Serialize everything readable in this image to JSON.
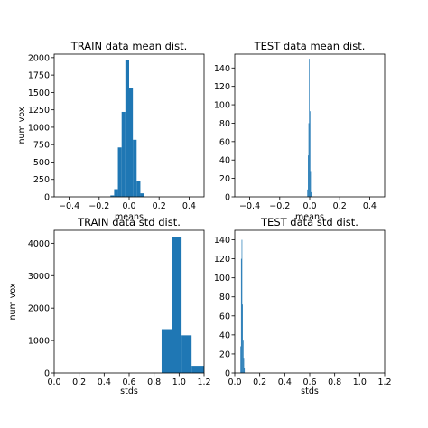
{
  "colors": {
    "bar": "#1f77b4",
    "axes": "#000000"
  },
  "chart_data": [
    {
      "type": "bar",
      "title": "TRAIN data mean dist.",
      "xlabel": "means",
      "ylabel": "num vox",
      "xlim": [
        -0.5,
        0.5
      ],
      "ylim": [
        0,
        2050
      ],
      "xticks": [
        -0.4,
        -0.2,
        0.0,
        0.2,
        0.4
      ],
      "xtick_labels": [
        "−0.4",
        "−0.2",
        "0.0",
        "0.2",
        "0.4"
      ],
      "yticks": [
        0,
        250,
        500,
        750,
        1000,
        1250,
        1500,
        1750,
        2000
      ],
      "ytick_labels": [
        "0",
        "250",
        "500",
        "750",
        "1000",
        "1250",
        "1500",
        "1750",
        "2000"
      ],
      "bins": [
        {
          "x0": -0.125,
          "x1": -0.1,
          "value": 20
        },
        {
          "x0": -0.1,
          "x1": -0.075,
          "value": 110
        },
        {
          "x0": -0.075,
          "x1": -0.05,
          "value": 710
        },
        {
          "x0": -0.05,
          "x1": -0.025,
          "value": 1220
        },
        {
          "x0": -0.025,
          "x1": 0.0,
          "value": 1960
        },
        {
          "x0": 0.0,
          "x1": 0.025,
          "value": 1560
        },
        {
          "x0": 0.025,
          "x1": 0.05,
          "value": 820
        },
        {
          "x0": 0.05,
          "x1": 0.075,
          "value": 230
        },
        {
          "x0": 0.075,
          "x1": 0.1,
          "value": 50
        }
      ]
    },
    {
      "type": "bar",
      "title": "TEST data mean dist.",
      "xlabel": "means",
      "ylabel": "",
      "xlim": [
        -0.5,
        0.5
      ],
      "ylim": [
        0,
        155
      ],
      "xticks": [
        -0.4,
        -0.2,
        0.0,
        0.2,
        0.4
      ],
      "xtick_labels": [
        "−0.4",
        "−0.2",
        "0.0",
        "0.2",
        "0.4"
      ],
      "yticks": [
        0,
        20,
        40,
        60,
        80,
        100,
        120,
        140
      ],
      "ytick_labels": [
        "0",
        "20",
        "40",
        "60",
        "80",
        "100",
        "120",
        "140"
      ],
      "bins": [
        {
          "x0": -0.016,
          "x1": -0.012,
          "value": 8
        },
        {
          "x0": -0.012,
          "x1": -0.008,
          "value": 45
        },
        {
          "x0": -0.008,
          "x1": -0.004,
          "value": 80
        },
        {
          "x0": -0.004,
          "x1": 0.0,
          "value": 150
        },
        {
          "x0": 0.0,
          "x1": 0.004,
          "value": 93
        },
        {
          "x0": 0.004,
          "x1": 0.008,
          "value": 28
        },
        {
          "x0": 0.008,
          "x1": 0.012,
          "value": 5
        }
      ]
    },
    {
      "type": "bar",
      "title": "TRAIN data std dist.",
      "xlabel": "stds",
      "ylabel": "num vox",
      "xlim": [
        0.0,
        1.2
      ],
      "ylim": [
        0,
        4400
      ],
      "xticks": [
        0.0,
        0.2,
        0.4,
        0.6,
        0.8,
        1.0,
        1.2
      ],
      "xtick_labels": [
        "0.0",
        "0.2",
        "0.4",
        "0.6",
        "0.8",
        "1.0",
        "1.2"
      ],
      "yticks": [
        0,
        1000,
        2000,
        3000,
        4000
      ],
      "ytick_labels": [
        "0",
        "1000",
        "2000",
        "3000",
        "4000"
      ],
      "bins": [
        {
          "x0": 0.86,
          "x1": 0.94,
          "value": 1350
        },
        {
          "x0": 0.94,
          "x1": 1.02,
          "value": 4180
        },
        {
          "x0": 1.02,
          "x1": 1.1,
          "value": 1160
        },
        {
          "x0": 1.1,
          "x1": 1.2,
          "value": 220
        }
      ]
    },
    {
      "type": "bar",
      "title": "TEST data std dist.",
      "xlabel": "stds",
      "ylabel": "",
      "xlim": [
        0.0,
        1.2
      ],
      "ylim": [
        0,
        150
      ],
      "xticks": [
        0.0,
        0.2,
        0.4,
        0.6,
        0.8,
        1.0,
        1.2
      ],
      "xtick_labels": [
        "0.0",
        "0.2",
        "0.4",
        "0.6",
        "0.8",
        "1.0",
        "1.2"
      ],
      "yticks": [
        0,
        20,
        40,
        60,
        80,
        100,
        120,
        140
      ],
      "ytick_labels": [
        "0",
        "20",
        "40",
        "60",
        "80",
        "100",
        "120",
        "140"
      ],
      "bins": [
        {
          "x0": 0.045,
          "x1": 0.05,
          "value": 28
        },
        {
          "x0": 0.05,
          "x1": 0.055,
          "value": 120
        },
        {
          "x0": 0.055,
          "x1": 0.06,
          "value": 140
        },
        {
          "x0": 0.06,
          "x1": 0.065,
          "value": 72
        },
        {
          "x0": 0.065,
          "x1": 0.07,
          "value": 34
        },
        {
          "x0": 0.07,
          "x1": 0.075,
          "value": 15
        },
        {
          "x0": 0.075,
          "x1": 0.08,
          "value": 5
        }
      ]
    }
  ]
}
